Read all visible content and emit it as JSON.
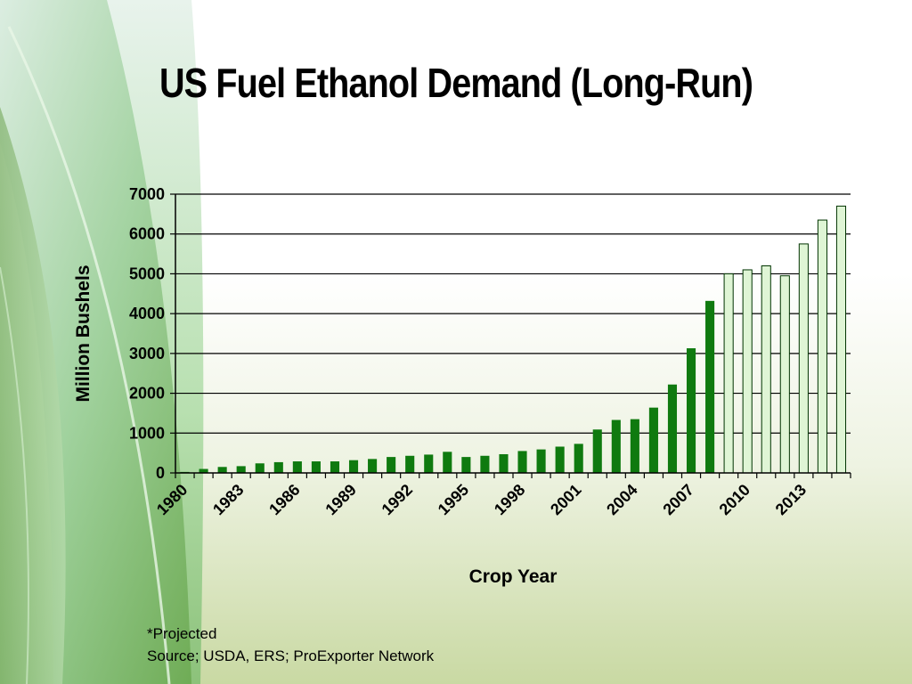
{
  "slide": {
    "title": "US Fuel Ethanol Demand (Long-Run)",
    "footnote": "*Projected",
    "source": "Source; USDA, ERS; ProExporter Network"
  },
  "colors": {
    "actual_bar": "#0f7a0f",
    "projected_bar": "#dff5d5",
    "bar_outline": "#003300",
    "gridline": "#000000",
    "leaf_light": "#b8e0b0",
    "leaf_dark": "#6aa84f"
  },
  "chart_data": {
    "type": "bar",
    "xlabel": "Crop Year",
    "ylabel": "Million Bushels",
    "ylim": [
      0,
      7000
    ],
    "yticks": [
      0,
      1000,
      2000,
      3000,
      4000,
      5000,
      6000,
      7000
    ],
    "grid": true,
    "legend": "none",
    "categories": [
      1980,
      1981,
      1982,
      1983,
      1984,
      1985,
      1986,
      1987,
      1988,
      1989,
      1990,
      1991,
      1992,
      1993,
      1994,
      1995,
      1996,
      1997,
      1998,
      1999,
      2000,
      2001,
      2002,
      2003,
      2004,
      2005,
      2006,
      2007,
      2008,
      2009,
      2010,
      2011,
      2012,
      2013,
      2014,
      2015
    ],
    "xtick_labels": [
      "1980",
      "1983",
      "1986",
      "1989",
      "1992",
      "1995",
      "1998",
      "2001",
      "2004",
      "2007",
      "2010",
      "2013"
    ],
    "values": [
      25,
      100,
      150,
      170,
      240,
      270,
      290,
      290,
      290,
      320,
      350,
      400,
      430,
      460,
      530,
      400,
      430,
      470,
      550,
      590,
      660,
      730,
      1090,
      1330,
      1350,
      1640,
      2220,
      3130,
      4320,
      5000,
      5100,
      5200,
      4950,
      5750,
      6350,
      6700
    ],
    "projected": [
      false,
      false,
      false,
      false,
      false,
      false,
      false,
      false,
      false,
      false,
      false,
      false,
      false,
      false,
      false,
      false,
      false,
      false,
      false,
      false,
      false,
      false,
      false,
      false,
      false,
      false,
      false,
      false,
      false,
      true,
      true,
      true,
      true,
      true,
      true,
      true
    ]
  }
}
